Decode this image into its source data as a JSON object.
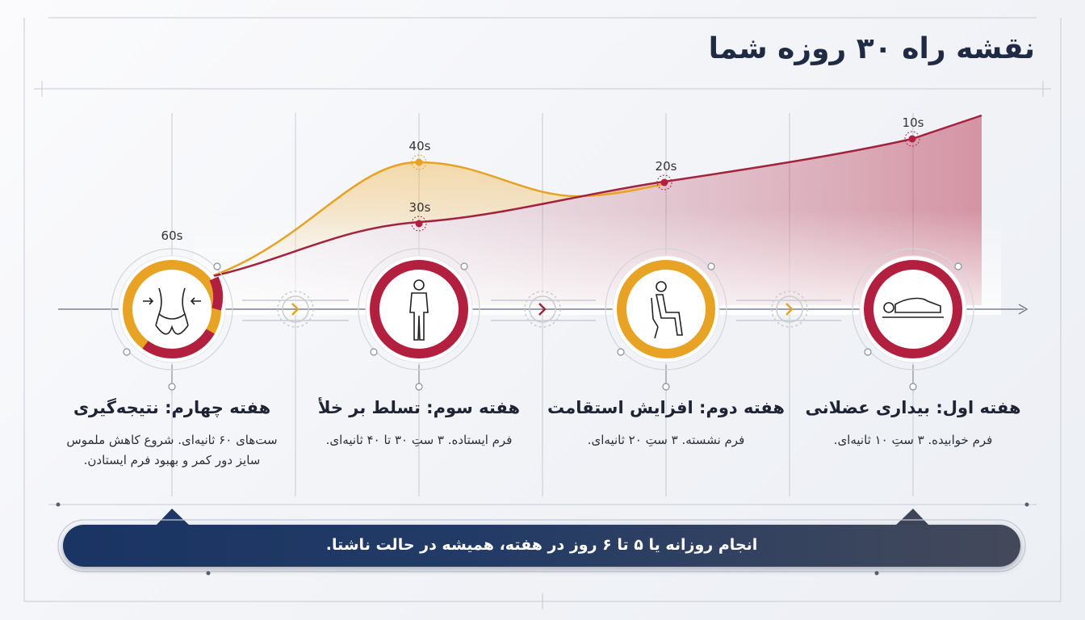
{
  "title": "نقشه راه ۳۰ روزه شما",
  "colors": {
    "gold": "#e8a224",
    "crimson": "#b3203f",
    "navy": "#1f3563"
  },
  "chart_data": {
    "type": "line",
    "series": [
      {
        "values_label": [
          "60s",
          "40s",
          "20s",
          "10s"
        ]
      },
      {
        "values_label": [
          "60s",
          "30s",
          "20s",
          "10s"
        ]
      }
    ]
  },
  "value_labels": {
    "w4": "60s",
    "w3_top": "40s",
    "w3_bottom": "30s",
    "w2": "20s",
    "w1": "10s"
  },
  "weeks": [
    {
      "title": "هفته اول: بیداری عضلانی",
      "desc": "فرم خوابیده. ۳ ستِ ۱۰ ثانیه‌ای.",
      "icon": "lying-figure-icon"
    },
    {
      "title": "هفته دوم: افزایش استقامت",
      "desc": "فرم نشسته. ۳ ستِ ۲۰ ثانیه‌ای.",
      "icon": "seated-figure-icon"
    },
    {
      "title": "هفته سوم: تسلط بر خلأ",
      "desc": "فرم ایستاده. ۳ ستِ ۳۰ تا ۴۰ ثانیه‌ای.",
      "icon": "standing-figure-icon"
    },
    {
      "title": "هفته چهارم: نتیجه‌گیری",
      "desc": "ست‌های ۶۰ ثانیه‌ای. شروع کاهش ملموس سایز دور کمر و بهبود فرم ایستادن.",
      "icon": "waist-shrink-icon"
    }
  ],
  "banner": "انجام روزانه یا ۵ تا ۶ روز در هفته، همیشه در حالت ناشتا."
}
